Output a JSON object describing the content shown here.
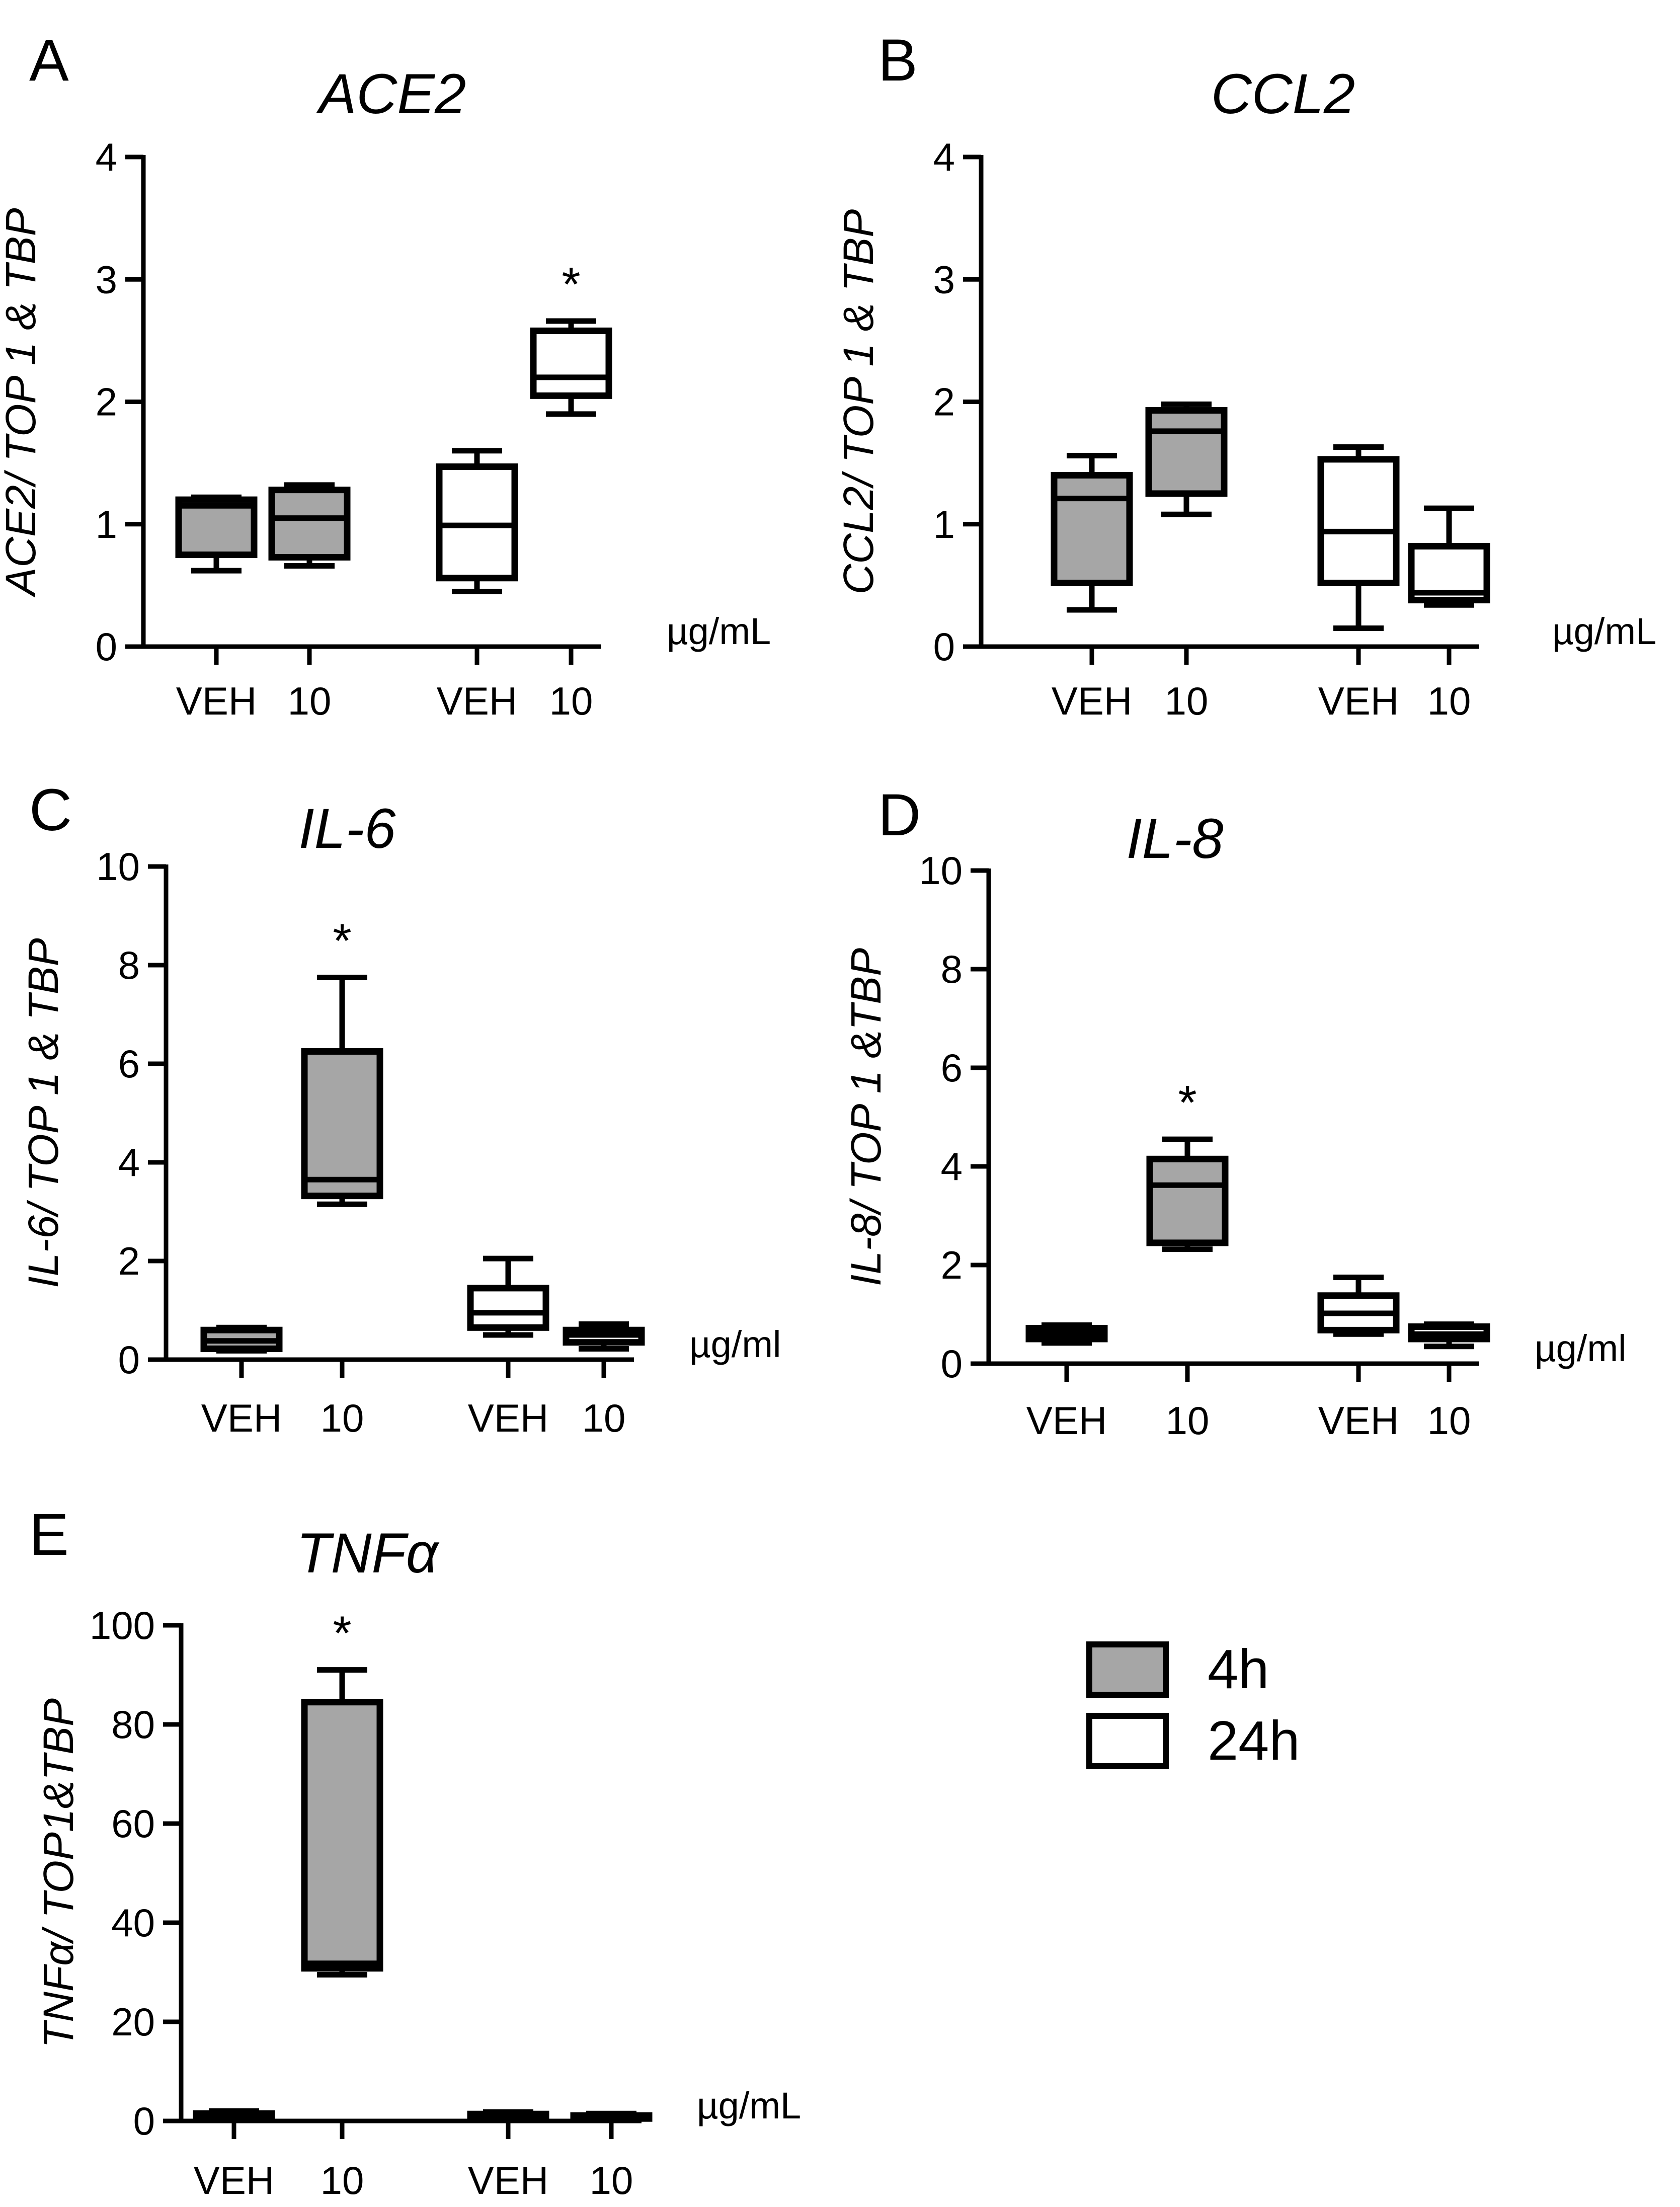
{
  "legend": [
    {
      "label": "4h",
      "color": "#a6a6a6"
    },
    {
      "label": "24h",
      "color": "#ffffff"
    }
  ],
  "chart_data": [
    {
      "type": "box",
      "panel": "A",
      "title": "ACE2",
      "ylabel": "ACE2/ TOP 1 & TBP",
      "unit": "µg/mL",
      "ylim": [
        0,
        4
      ],
      "yticks": [
        0,
        1,
        2,
        3,
        4
      ],
      "categories": [
        "VEH",
        "10",
        "VEH",
        "10"
      ],
      "groups": [
        {
          "series": "4h",
          "min": 0.62,
          "q1": 0.75,
          "median": 1.15,
          "q3": 1.2,
          "max": 1.22,
          "star": false
        },
        {
          "series": "4h",
          "min": 0.66,
          "q1": 0.73,
          "median": 1.05,
          "q3": 1.28,
          "max": 1.32,
          "star": false
        },
        {
          "series": "24h",
          "min": 0.45,
          "q1": 0.56,
          "median": 0.99,
          "q3": 1.47,
          "max": 1.6,
          "star": false
        },
        {
          "series": "24h",
          "min": 1.9,
          "q1": 2.05,
          "median": 2.2,
          "q3": 2.58,
          "max": 2.66,
          "star": true
        }
      ]
    },
    {
      "type": "box",
      "panel": "B",
      "title": "CCL2",
      "ylabel": "CCL2/ TOP 1 & TBP",
      "unit": "µg/mL",
      "ylim": [
        0,
        4
      ],
      "yticks": [
        0,
        1,
        2,
        3,
        4
      ],
      "categories": [
        "VEH",
        "10",
        "VEH",
        "10"
      ],
      "groups": [
        {
          "series": "4h",
          "min": 0.3,
          "q1": 0.52,
          "median": 1.21,
          "q3": 1.4,
          "max": 1.56,
          "star": false
        },
        {
          "series": "4h",
          "min": 1.08,
          "q1": 1.25,
          "median": 1.76,
          "q3": 1.93,
          "max": 1.98,
          "star": false
        },
        {
          "series": "24h",
          "min": 0.15,
          "q1": 0.52,
          "median": 0.94,
          "q3": 1.53,
          "max": 1.63,
          "star": false
        },
        {
          "series": "24h",
          "min": 0.34,
          "q1": 0.38,
          "median": 0.44,
          "q3": 0.82,
          "max": 1.13,
          "star": false
        }
      ]
    },
    {
      "type": "box",
      "panel": "C",
      "title": "IL-6",
      "ylabel": "IL-6/ TOP 1 & TBP",
      "unit": "µg/ml",
      "ylim": [
        0,
        10
      ],
      "yticks": [
        0,
        2,
        4,
        6,
        8,
        10
      ],
      "categories": [
        "VEH",
        "10",
        "VEH",
        "10"
      ],
      "groups": [
        {
          "series": "4h",
          "min": 0.18,
          "q1": 0.22,
          "median": 0.38,
          "q3": 0.6,
          "max": 0.65,
          "star": false
        },
        {
          "series": "4h",
          "min": 3.15,
          "q1": 3.32,
          "median": 3.65,
          "q3": 6.25,
          "max": 7.75,
          "star": true
        },
        {
          "series": "24h",
          "min": 0.5,
          "q1": 0.65,
          "median": 0.95,
          "q3": 1.45,
          "max": 2.05,
          "star": false
        },
        {
          "series": "24h",
          "min": 0.22,
          "q1": 0.35,
          "median": 0.5,
          "q3": 0.6,
          "max": 0.72,
          "star": false
        }
      ]
    },
    {
      "type": "box",
      "panel": "D",
      "title": "IL-8",
      "ylabel": "IL-8/ TOP 1 &TBP",
      "unit": "µg/ml",
      "ylim": [
        0,
        10
      ],
      "yticks": [
        0,
        2,
        4,
        6,
        8,
        10
      ],
      "categories": [
        "VEH",
        "10",
        "VEH",
        "10"
      ],
      "groups": [
        {
          "series": "4h",
          "min": 0.42,
          "q1": 0.5,
          "median": 0.62,
          "q3": 0.72,
          "max": 0.78,
          "star": false
        },
        {
          "series": "4h",
          "min": 2.32,
          "q1": 2.45,
          "median": 3.62,
          "q3": 4.15,
          "max": 4.55,
          "star": true
        },
        {
          "series": "24h",
          "min": 0.6,
          "q1": 0.68,
          "median": 1.02,
          "q3": 1.38,
          "max": 1.75,
          "star": false
        },
        {
          "series": "24h",
          "min": 0.35,
          "q1": 0.5,
          "median": 0.6,
          "q3": 0.75,
          "max": 0.8,
          "star": false
        }
      ]
    },
    {
      "type": "box",
      "panel": "E",
      "title": "TNFα",
      "ylabel": "TNFα/ TOP1&TBP",
      "unit": "µg/mL",
      "ylim": [
        0,
        100
      ],
      "yticks": [
        0,
        20,
        40,
        60,
        80,
        100
      ],
      "categories": [
        "VEH",
        "10",
        "VEH",
        "10"
      ],
      "groups": [
        {
          "series": "4h",
          "min": 0.3,
          "q1": 0.6,
          "median": 1.0,
          "q3": 1.5,
          "max": 2.0,
          "star": false
        },
        {
          "series": "4h",
          "min": 29.5,
          "q1": 30.8,
          "median": 31.8,
          "q3": 84.5,
          "max": 91.0,
          "star": true
        },
        {
          "series": "24h",
          "min": 0.3,
          "q1": 0.6,
          "median": 1.0,
          "q3": 1.4,
          "max": 1.8,
          "star": false
        },
        {
          "series": "24h",
          "min": 0.2,
          "q1": 0.5,
          "median": 0.8,
          "q3": 1.1,
          "max": 1.5,
          "star": false
        }
      ]
    }
  ]
}
